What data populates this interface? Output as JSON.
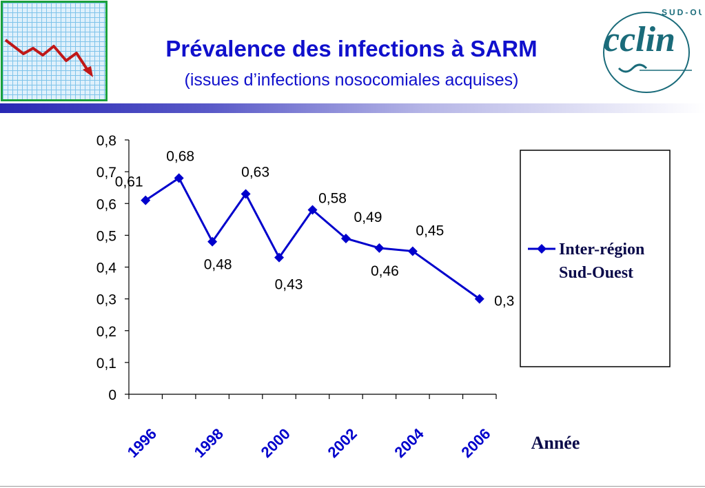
{
  "header": {
    "title": "Prévalence des infections à SARM",
    "subtitle": "(issues d’infections nosocomiales acquises)"
  },
  "logo": {
    "text_main": "cclin",
    "text_ring": "SUD-OUEST"
  },
  "chart_data": {
    "type": "line",
    "title": "Prévalence des infections à SARM",
    "subtitle": "(issues d’infections nosocomiales acquises)",
    "xlabel": "Année",
    "ylabel": "",
    "ylim": [
      0,
      0.8
    ],
    "yticks": [
      "0",
      "0,1",
      "0,2",
      "0,3",
      "0,4",
      "0,5",
      "0,6",
      "0,7",
      "0,8"
    ],
    "xtick_labels": [
      "1996",
      "1998",
      "2000",
      "2002",
      "2004",
      "2006"
    ],
    "grid": false,
    "legend_position": "right",
    "series": [
      {
        "name": "Inter-région Sud-Ouest",
        "legend_lines": [
          "Inter-région",
          "Sud-Ouest"
        ],
        "color": "#0000cc",
        "x": [
          1996,
          1997,
          1998,
          1999,
          2000,
          2001,
          2002,
          2003,
          2004,
          2006
        ],
        "values": [
          0.61,
          0.68,
          0.48,
          0.63,
          0.43,
          0.58,
          0.49,
          0.46,
          0.45,
          0.3
        ],
        "labels": [
          "0,61",
          "0,68",
          "0,48",
          "0,63",
          "0,43",
          "0,58",
          "0,49",
          "0,46",
          "0,45",
          "0,3"
        ]
      }
    ]
  },
  "colors": {
    "series": "#0000cc",
    "title": "#1010cc",
    "thumbnail_border": "#1aa13c",
    "thumbnail_line": "#c01818"
  }
}
